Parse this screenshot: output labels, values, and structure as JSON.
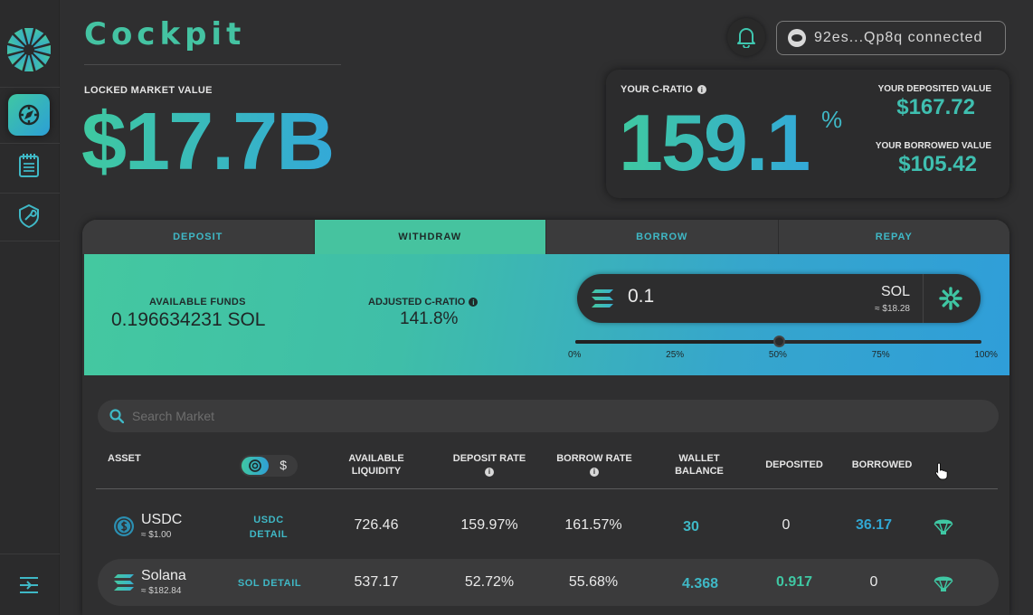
{
  "app": {
    "title": "Cockpit"
  },
  "sidebar": {
    "items": [
      {
        "name": "cockpit",
        "icon": "compass-icon",
        "active": true
      },
      {
        "name": "notes",
        "icon": "notepad-icon",
        "active": false
      },
      {
        "name": "tools",
        "icon": "wrench-shield-icon",
        "active": false
      }
    ],
    "collapse_icon": "expand-sidebar-icon"
  },
  "header": {
    "notifications_icon": "bell-icon",
    "wallet": {
      "label": "92es...Qp8q connected"
    }
  },
  "locked_market": {
    "label": "LOCKED MARKET VALUE",
    "value": "$17.7B"
  },
  "c_ratio": {
    "label": "YOUR C-RATIO",
    "value": "159.1",
    "unit": "%",
    "deposited_label": "YOUR DEPOSITED VALUE",
    "deposited_value": "$167.72",
    "borrowed_label": "YOUR BORROWED VALUE",
    "borrowed_value": "$105.42"
  },
  "tabs": [
    {
      "label": "DEPOSIT",
      "active": false
    },
    {
      "label": "WITHDRAW",
      "active": true
    },
    {
      "label": "BORROW",
      "active": false
    },
    {
      "label": "REPAY",
      "active": false
    }
  ],
  "action": {
    "available_label": "AVAILABLE FUNDS",
    "available_value": "0.196634231 SOL",
    "adjusted_label": "ADJUSTED C-RATIO",
    "adjusted_value": "141.8%",
    "amount": "0.1",
    "token": "SOL",
    "token_usd": "≈ $18.28",
    "slider_percent": 50,
    "slider_ticks": [
      "0%",
      "25%",
      "50%",
      "75%",
      "100%"
    ]
  },
  "search": {
    "placeholder": "Search Market"
  },
  "table": {
    "headers": {
      "asset": "ASSET",
      "available_liquidity": "AVAILABLE LIQUIDITY",
      "deposit_rate": "DEPOSIT RATE",
      "borrow_rate": "BORROW RATE",
      "wallet_balance": "WALLET BALANCE",
      "deposited": "DEPOSITED",
      "borrowed": "BORROWED"
    },
    "toggle": {
      "on_icon": "coin-icon",
      "off_label": "$"
    },
    "rows": [
      {
        "asset": "USDC",
        "price": "≈ $1.00",
        "detail": "USDC DETAIL",
        "liquidity": "726.46",
        "deposit_rate": "159.97%",
        "borrow_rate": "161.57%",
        "wallet": "30",
        "deposited": "0",
        "borrowed": "36.17",
        "icon": "usdc-icon"
      },
      {
        "asset": "Solana",
        "price": "≈ $182.84",
        "detail": "SOL DETAIL",
        "liquidity": "537.17",
        "deposit_rate": "52.72%",
        "borrow_rate": "55.68%",
        "wallet": "4.368",
        "deposited": "0.917",
        "borrowed": "0",
        "icon": "solana-icon"
      }
    ]
  }
}
